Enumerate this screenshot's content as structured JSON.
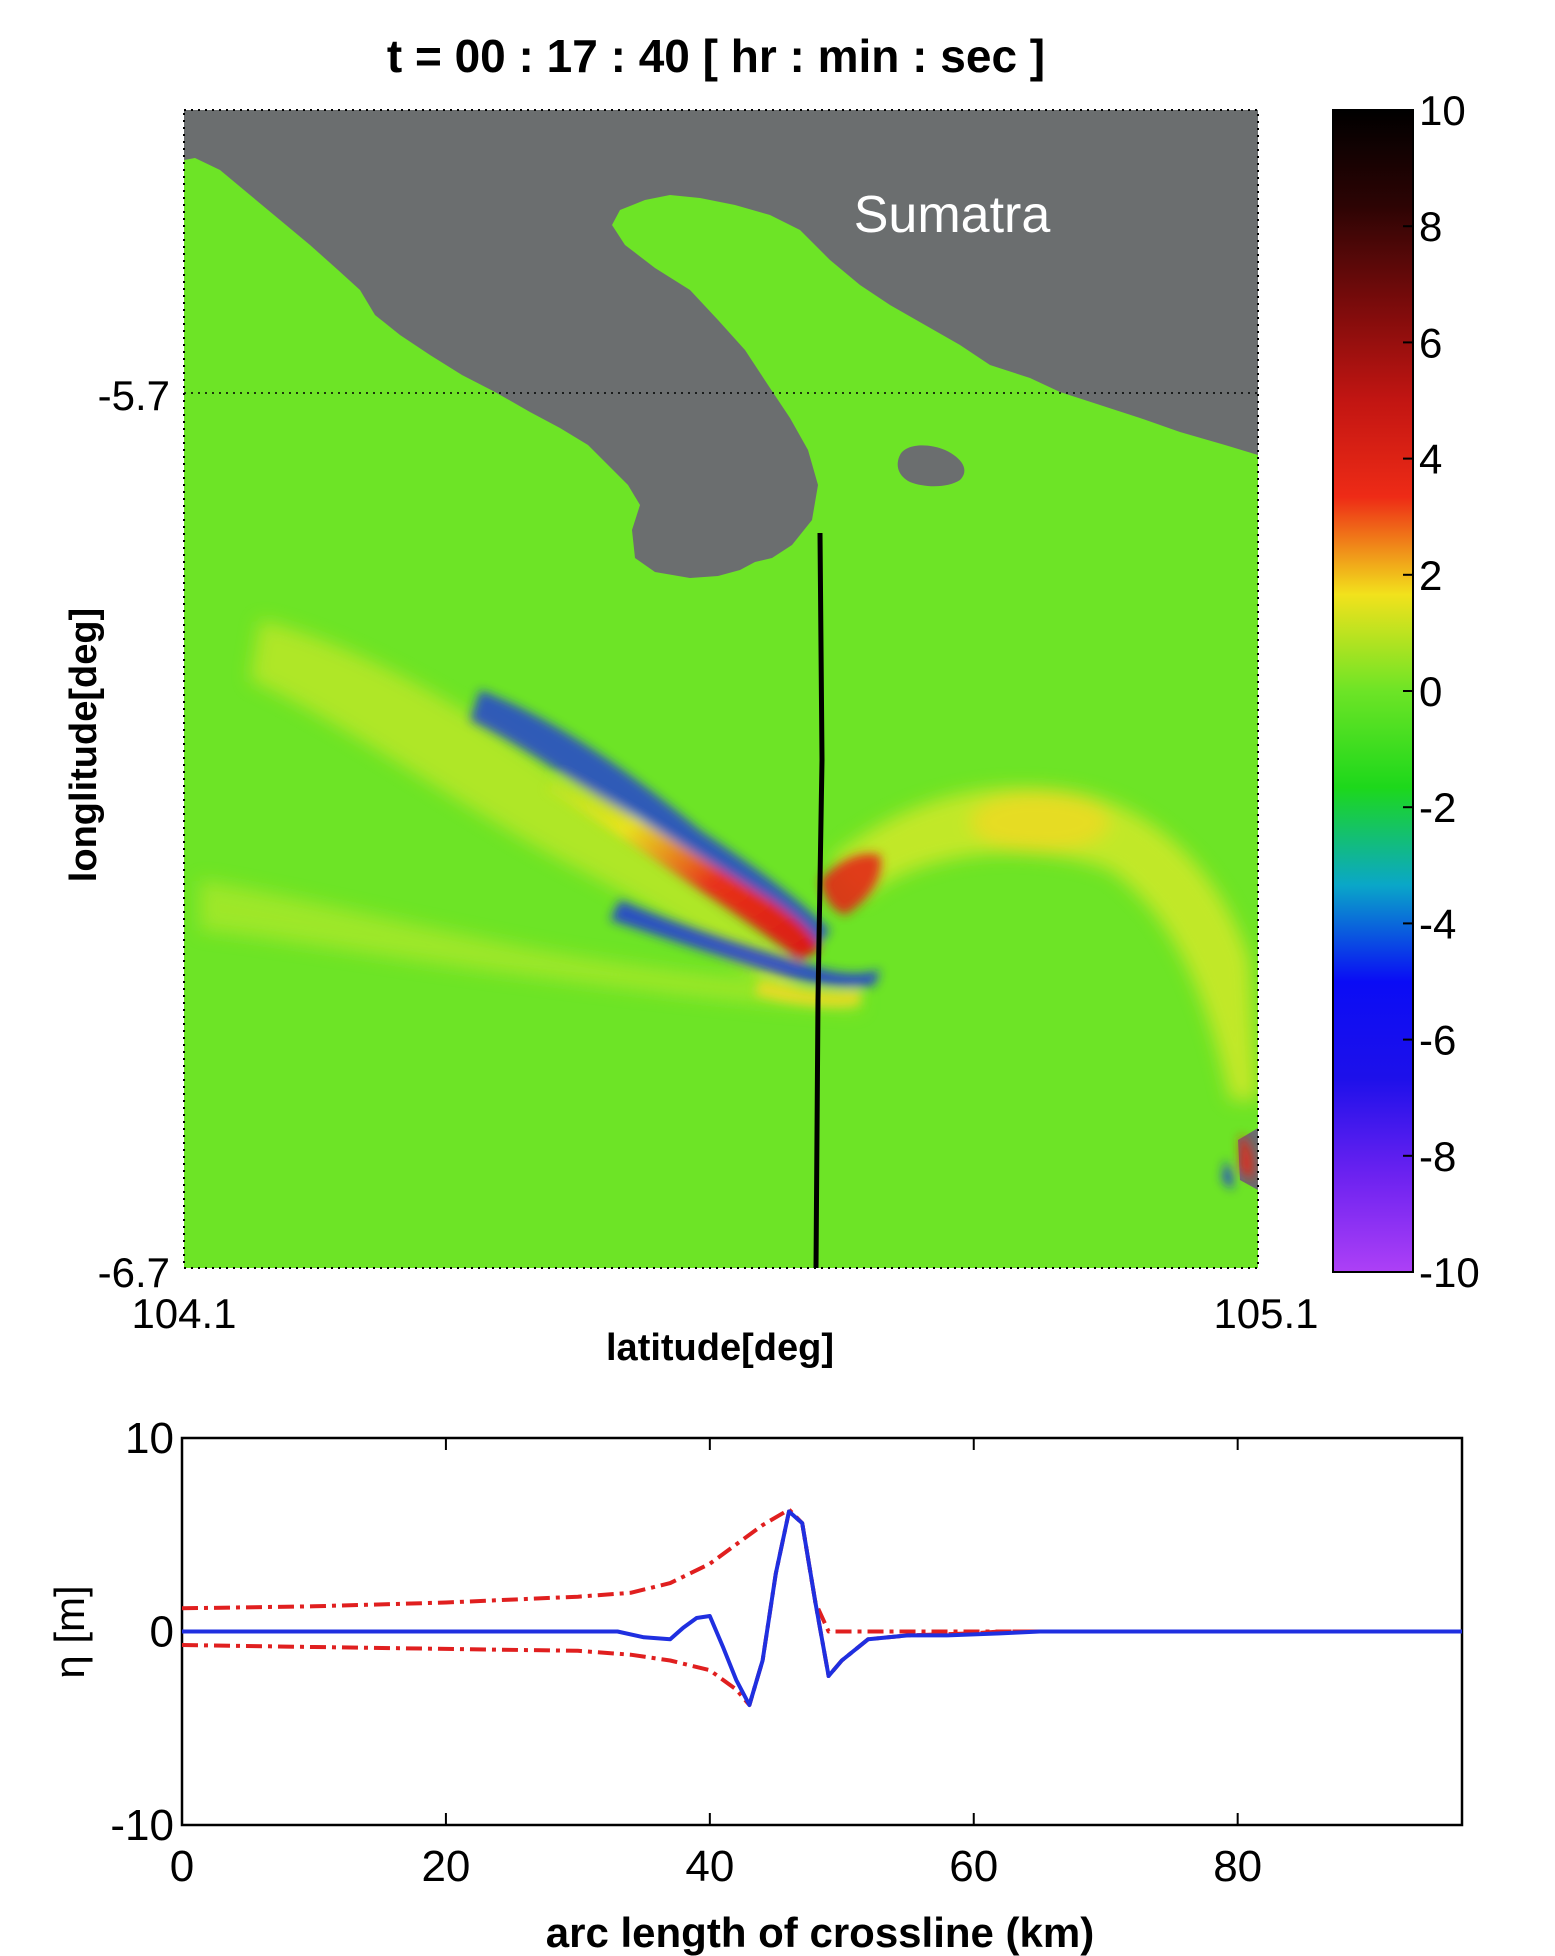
{
  "figure_title": "t = 00 : 17 : 40 [ hr : min : sec ]",
  "colors": {
    "land": "#6b6e6f",
    "water": "#6de426",
    "crossline": "#000000",
    "envelope": "#e01f1f",
    "profile": "#1f2fe0",
    "island_label": "#ffffff"
  },
  "chart_data": [
    {
      "type": "heatmap",
      "title": "t = 00 : 17 : 40 [ hr : min : sec ]",
      "xlabel": "latitude[deg]",
      "ylabel": "longlitude[deg]",
      "xlim": [
        104.1,
        105.1
      ],
      "ylim": [
        -6.7,
        -5.7
      ],
      "x_tick_labels": [
        "104.1",
        "105.1"
      ],
      "y_tick_labels": [
        "-5.7",
        "-6.7"
      ],
      "annotation": "Sumatra",
      "colorbar": {
        "range": [
          -10,
          10
        ],
        "tick_labels": [
          "10",
          "8",
          "6",
          "4",
          "2",
          "0",
          "-2",
          "-4",
          "-6",
          "-8",
          "-10"
        ],
        "colors": [
          "#ad40f6",
          "#6c22f0",
          "#1d10ea",
          "#0a0cf5",
          "#0aa7c8",
          "#1dd81b",
          "#6de426",
          "#f2e21c",
          "#ee2b16",
          "#c21512",
          "#7a0b0b",
          "#2d0404",
          "#000000"
        ]
      },
      "crossline": {
        "lat": 104.69,
        "lon_start": -6.07,
        "lon_end": -6.7
      },
      "grid": "dotted box"
    },
    {
      "type": "line",
      "xlabel": "arc length of crossline (km)",
      "ylabel": "η [m]",
      "xlim": [
        0,
        97
      ],
      "ylim": [
        -10,
        10
      ],
      "x_ticks": [
        0,
        20,
        40,
        60,
        80
      ],
      "y_ticks": [
        -10,
        0,
        10
      ],
      "series": [
        {
          "style": "solid",
          "color": "blue",
          "x": [
            0,
            30,
            33,
            35,
            37,
            38,
            39,
            40,
            41,
            42,
            43,
            44,
            45,
            46,
            47,
            48,
            49,
            50,
            52,
            55,
            58,
            62,
            65,
            70,
            80,
            97
          ],
          "y": [
            0,
            0,
            0,
            -0.3,
            -0.4,
            0.2,
            0.7,
            0.8,
            -0.8,
            -2.5,
            -3.8,
            -1.5,
            3,
            6.2,
            5.6,
            1.5,
            -2.3,
            -1.5,
            -0.4,
            -0.2,
            -0.2,
            -0.1,
            0,
            0,
            0,
            0
          ]
        },
        {
          "style": "dash-dot",
          "color": "red",
          "x": [
            0,
            10,
            20,
            30,
            34,
            37,
            40,
            42,
            44,
            46,
            47,
            48,
            49,
            50,
            60,
            70,
            80,
            97
          ],
          "y": [
            1.2,
            1.3,
            1.5,
            1.8,
            2,
            2.5,
            3.5,
            4.5,
            5.5,
            6.3,
            5.6,
            1.5,
            0,
            0,
            0,
            0,
            0,
            0
          ]
        },
        {
          "style": "dash-dot",
          "color": "red",
          "x": [
            0,
            10,
            20,
            30,
            34,
            37,
            40,
            42,
            43,
            44,
            45,
            46,
            47,
            48,
            49,
            50,
            52,
            55,
            60,
            62,
            65,
            70,
            80,
            97
          ],
          "y": [
            -0.7,
            -0.8,
            -0.9,
            -1,
            -1.2,
            -1.5,
            -2,
            -3,
            -3.8,
            -1.5,
            3,
            6.2,
            5.6,
            1.5,
            -2.3,
            -1.5,
            -0.4,
            -0.2,
            -0.1,
            0,
            0,
            0,
            0,
            0
          ]
        }
      ]
    }
  ]
}
